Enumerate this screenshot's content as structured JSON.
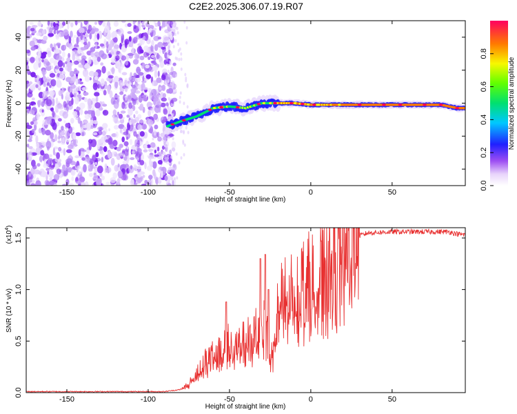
{
  "title": "C2E2.2025.306.07.19.R07",
  "chart_data": [
    {
      "type": "heatmap",
      "name": "spectrogram",
      "xlabel": "Height of straight line (km)",
      "ylabel": "Frequency (Hz)",
      "xlim": [
        -175,
        95
      ],
      "ylim": [
        -50,
        50
      ],
      "x_ticks": [
        -150,
        -100,
        -50,
        0,
        50
      ],
      "y_ticks": [
        -40,
        -20,
        0,
        20,
        40
      ],
      "noise_region_x": [
        -175,
        -88
      ],
      "signal_track": [
        {
          "x": -88,
          "y": -14
        },
        {
          "x": -80,
          "y": -11
        },
        {
          "x": -70,
          "y": -8
        },
        {
          "x": -60,
          "y": -3
        },
        {
          "x": -50,
          "y": -2
        },
        {
          "x": -40,
          "y": -3
        },
        {
          "x": -30,
          "y": 0
        },
        {
          "x": -20,
          "y": 0
        },
        {
          "x": -10,
          "y": 0
        },
        {
          "x": 0,
          "y": -1
        },
        {
          "x": 10,
          "y": -1
        },
        {
          "x": 20,
          "y": -1
        },
        {
          "x": 30,
          "y": -1
        },
        {
          "x": 40,
          "y": -1
        },
        {
          "x": 50,
          "y": -1
        },
        {
          "x": 60,
          "y": -1
        },
        {
          "x": 70,
          "y": -1
        },
        {
          "x": 80,
          "y": -1
        },
        {
          "x": 90,
          "y": -3
        },
        {
          "x": 95,
          "y": -3
        }
      ],
      "colorbar": {
        "label": "Normalized spectral amplitude",
        "ticks": [
          "0.0",
          "0.2",
          "0.4",
          "0.6",
          "0.8"
        ],
        "range": [
          0,
          1
        ]
      }
    },
    {
      "type": "line",
      "name": "snr",
      "xlabel": "Height of straight line (km)",
      "ylabel": "SNR (10 * v/v)",
      "multiplier": "(x10",
      "multiplier_exp": "4",
      "multiplier_close": ")",
      "xlim": [
        -175,
        95
      ],
      "ylim": [
        0,
        1.6
      ],
      "x_ticks": [
        -150,
        -100,
        -50,
        0,
        50
      ],
      "y_ticks": [
        "0.0",
        "0.5",
        "1.0",
        "1.5"
      ],
      "color": "#e83030",
      "envelope": [
        {
          "x": -175,
          "y": 0.01
        },
        {
          "x": -90,
          "y": 0.01
        },
        {
          "x": -80,
          "y": 0.03
        },
        {
          "x": -75,
          "y": 0.08
        },
        {
          "x": -70,
          "y": 0.2
        },
        {
          "x": -65,
          "y": 0.3
        },
        {
          "x": -60,
          "y": 0.35
        },
        {
          "x": -55,
          "y": 0.4
        },
        {
          "x": -52,
          "y": 0.55
        },
        {
          "x": -50,
          "y": 0.45
        },
        {
          "x": -45,
          "y": 0.45
        },
        {
          "x": -40,
          "y": 0.5
        },
        {
          "x": -35,
          "y": 0.55
        },
        {
          "x": -30,
          "y": 0.85
        },
        {
          "x": -27,
          "y": 0.7
        },
        {
          "x": -25,
          "y": 0.3
        },
        {
          "x": -22,
          "y": 0.6
        },
        {
          "x": -20,
          "y": 0.85
        },
        {
          "x": -15,
          "y": 0.95
        },
        {
          "x": -10,
          "y": 1.0
        },
        {
          "x": -5,
          "y": 1.05
        },
        {
          "x": 0,
          "y": 1.1
        },
        {
          "x": 5,
          "y": 1.15
        },
        {
          "x": 10,
          "y": 1.2
        },
        {
          "x": 15,
          "y": 1.3
        },
        {
          "x": 20,
          "y": 1.4
        },
        {
          "x": 25,
          "y": 1.47
        },
        {
          "x": 30,
          "y": 1.52
        },
        {
          "x": 35,
          "y": 1.55
        },
        {
          "x": 50,
          "y": 1.56
        },
        {
          "x": 70,
          "y": 1.56
        },
        {
          "x": 85,
          "y": 1.56
        },
        {
          "x": 90,
          "y": 1.54
        },
        {
          "x": 95,
          "y": 1.53
        }
      ],
      "spikes": [
        {
          "x": -52,
          "y": 0.88
        },
        {
          "x": -31,
          "y": 1.3
        },
        {
          "x": -28,
          "y": 1.34
        },
        {
          "x": -26,
          "y": 1.0
        }
      ]
    }
  ],
  "colors": {
    "axis": "#000000",
    "line": "#e83030",
    "noise": "#7a22ee"
  }
}
